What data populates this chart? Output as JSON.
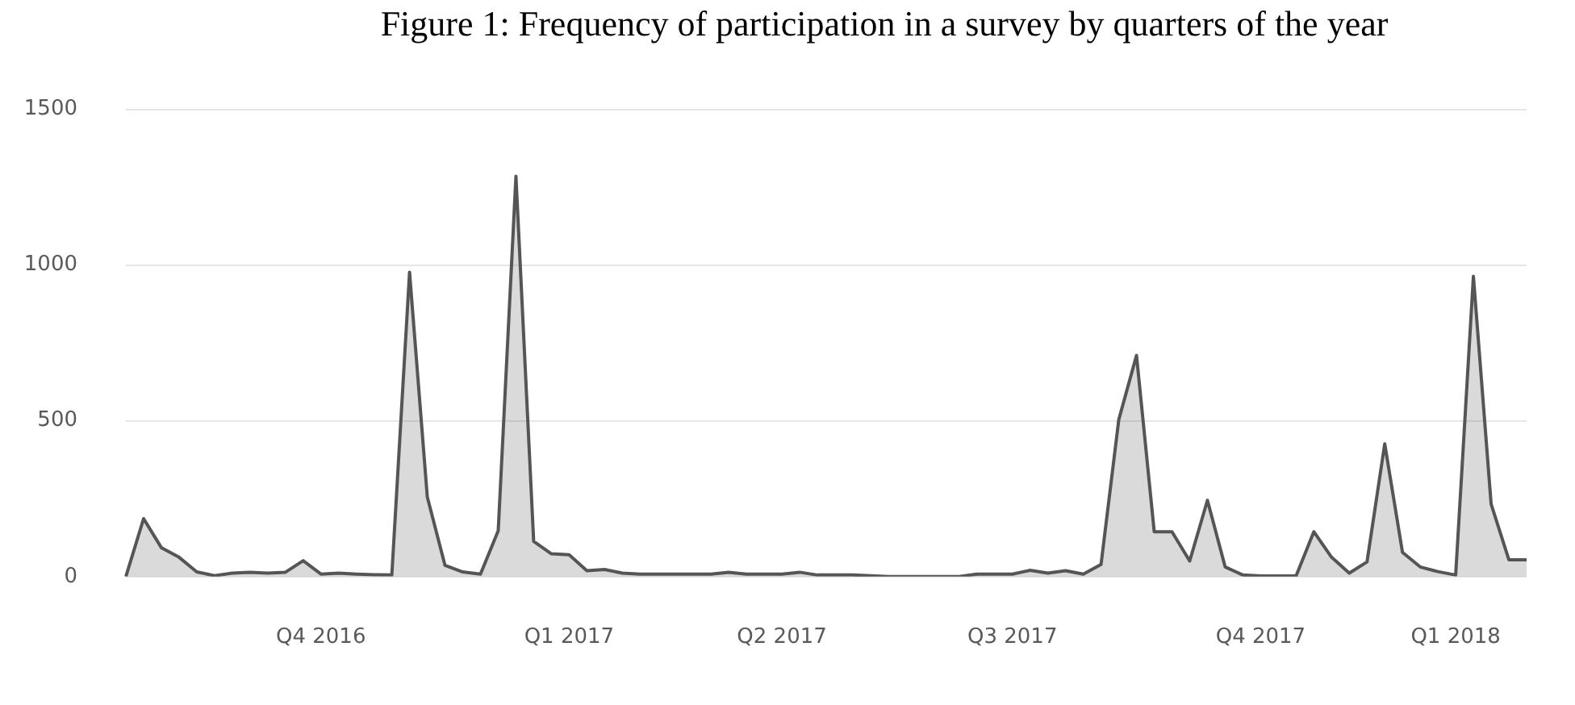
{
  "chart_data": {
    "type": "area",
    "title": "Figure 1: Frequency of participation in a survey by quarters of the year",
    "categories": [
      null,
      null,
      null,
      null,
      null,
      null,
      null,
      null,
      null,
      null,
      null,
      "Q4 2016",
      null,
      null,
      null,
      null,
      null,
      null,
      null,
      null,
      null,
      null,
      null,
      null,
      null,
      "Q1 2017",
      null,
      null,
      null,
      null,
      null,
      null,
      null,
      null,
      null,
      null,
      null,
      "Q2 2017",
      null,
      null,
      null,
      null,
      null,
      null,
      null,
      null,
      null,
      null,
      null,
      null,
      "Q3 2017",
      null,
      null,
      null,
      null,
      null,
      null,
      null,
      null,
      null,
      null,
      null,
      null,
      null,
      "Q4 2017",
      null,
      null,
      null,
      null,
      null,
      null,
      null,
      null,
      null,
      null,
      "Q1 2018",
      null,
      null,
      null,
      null
    ],
    "series": [
      {
        "color": "#555555",
        "values": [
          0,
          186,
          93,
          62,
          15,
          3,
          11,
          14,
          11,
          14,
          51,
          8,
          11,
          8,
          6,
          5,
          977,
          256,
          36,
          15,
          8,
          147,
          1285,
          113,
          73,
          70,
          19,
          23,
          11,
          8,
          8,
          8,
          8,
          8,
          14,
          8,
          8,
          8,
          14,
          5,
          5,
          5,
          3,
          0,
          0,
          0,
          0,
          0,
          8,
          8,
          8,
          20,
          11,
          19,
          8,
          39,
          504,
          710,
          144,
          144,
          50,
          245,
          31,
          5,
          2,
          2,
          2,
          144,
          62,
          11,
          47,
          426,
          78,
          31,
          16,
          5,
          964,
          233,
          54,
          54
        ]
      }
    ],
    "ylim": [
      0,
      1500
    ],
    "yticks": [
      0,
      500,
      1000,
      1500
    ],
    "grid": "y",
    "legend": false,
    "marker": "none",
    "line_style": "solid"
  }
}
